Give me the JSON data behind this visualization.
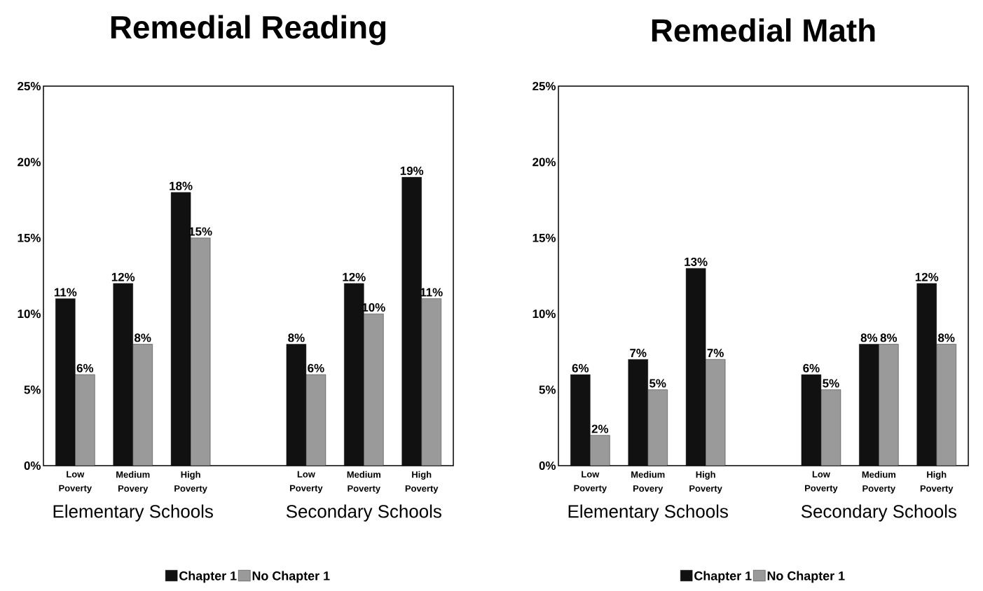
{
  "chart_data": [
    {
      "type": "bar",
      "title": "Remedial Reading",
      "categories": [
        "Low Poverty",
        "Medium Povery",
        "High Poverty",
        null,
        "Low Poverty",
        "Medium Poverty",
        "High Poverty"
      ],
      "series": [
        {
          "name": "Chapter 1",
          "color": "#111111",
          "values": [
            11,
            12,
            18,
            null,
            8,
            12,
            19
          ],
          "value_labels": [
            "11%",
            "12%",
            "18%",
            null,
            "8%",
            "12%",
            "19%"
          ]
        },
        {
          "name": "No Chapter 1",
          "color": "#9a9a9a",
          "values": [
            6,
            8,
            15,
            null,
            6,
            10,
            11
          ],
          "value_labels": [
            "6%",
            "8%",
            "15%",
            null,
            "6%",
            "10%",
            "11%"
          ]
        }
      ],
      "ylim": [
        0,
        25
      ],
      "yticks": [
        {
          "value": 0,
          "label": "0%"
        },
        {
          "value": 5,
          "label": "5%"
        },
        {
          "value": 10,
          "label": "10%"
        },
        {
          "value": 15,
          "label": "15%"
        },
        {
          "value": 20,
          "label": "20%"
        },
        {
          "value": 25,
          "label": "25%"
        }
      ],
      "annotations": [
        "Elementary Schools",
        "Secondary Schools"
      ],
      "legend": "bottom",
      "grid": false
    },
    {
      "type": "bar",
      "title": "Remedial Math",
      "categories": [
        "Low Poverty",
        "Medium Povery",
        "High Poverty",
        null,
        "Low Poverty",
        "Medium Poverty",
        "High Poverty"
      ],
      "series": [
        {
          "name": "Chapter 1",
          "color": "#111111",
          "values": [
            6,
            7,
            13,
            null,
            6,
            8,
            12
          ],
          "value_labels": [
            "6%",
            "7%",
            "13%",
            null,
            "6%",
            "8%",
            "12%"
          ]
        },
        {
          "name": "No Chapter 1",
          "color": "#9a9a9a",
          "values": [
            2,
            5,
            7,
            null,
            5,
            8,
            8
          ],
          "value_labels": [
            "2%",
            "5%",
            "7%",
            null,
            "5%",
            "8%",
            "8%"
          ]
        }
      ],
      "ylim": [
        0,
        25
      ],
      "yticks": [
        {
          "value": 0,
          "label": "0%"
        },
        {
          "value": 5,
          "label": "5%"
        },
        {
          "value": 10,
          "label": "10%"
        },
        {
          "value": 15,
          "label": "15%"
        },
        {
          "value": 20,
          "label": "20%"
        },
        {
          "value": 25,
          "label": "25%"
        }
      ],
      "annotations": [
        "Elementary Schools",
        "Secondary Schools"
      ],
      "legend": "bottom",
      "grid": false
    }
  ]
}
